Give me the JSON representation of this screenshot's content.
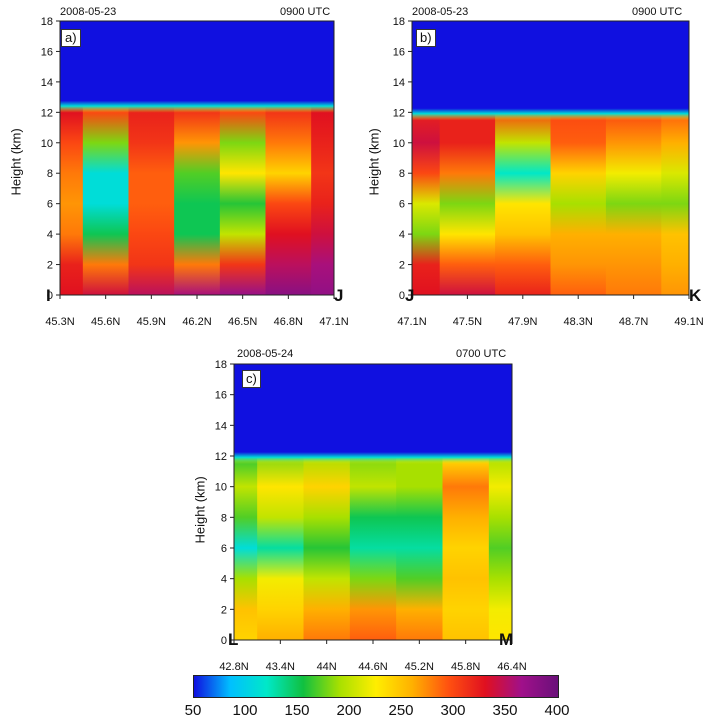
{
  "panels": [
    {
      "id": "a",
      "tag": "a)",
      "date": "2008-05-23",
      "time": "0900 UTC",
      "ylabel": "Height (km)",
      "start_label": "I",
      "end_label": "J",
      "xticks": [
        "45.3N",
        "45.6N",
        "45.9N",
        "46.2N",
        "46.5N",
        "46.8N",
        "47.1N"
      ],
      "yticks": [
        "0",
        "2",
        "4",
        "6",
        "8",
        "10",
        "12",
        "14",
        "16",
        "18"
      ]
    },
    {
      "id": "b",
      "tag": "b)",
      "date": "2008-05-23",
      "time": "0900 UTC",
      "ylabel": "Height (km)",
      "start_label": "J",
      "end_label": "K",
      "xticks": [
        "47.1N",
        "47.5N",
        "47.9N",
        "48.3N",
        "48.7N",
        "49.1N"
      ],
      "yticks": [
        "0",
        "2",
        "4",
        "6",
        "8",
        "10",
        "12",
        "14",
        "16",
        "18"
      ]
    },
    {
      "id": "c",
      "tag": "c)",
      "date": "2008-05-24",
      "time": "0700 UTC",
      "ylabel": "Height (km)",
      "start_label": "L",
      "end_label": "M",
      "xticks": [
        "42.8N",
        "43.4N",
        "44N",
        "44.6N",
        "45.2N",
        "45.8N",
        "46.4N"
      ],
      "yticks": [
        "0",
        "2",
        "4",
        "6",
        "8",
        "10",
        "12",
        "14",
        "16",
        "18"
      ]
    }
  ],
  "colorbar": {
    "ticks": [
      "50",
      "100",
      "150",
      "200",
      "250",
      "300",
      "350",
      "400"
    ],
    "colors": [
      "#1010e0",
      "#00c0ff",
      "#00e8c8",
      "#10c040",
      "#a8e000",
      "#ffee00",
      "#ffb000",
      "#ff5010",
      "#e01020",
      "#a0108a",
      "#6a107a"
    ]
  },
  "chart_data": [
    {
      "type": "heatmap",
      "title": "a)",
      "subtitle": "2008-05-23 0900 UTC",
      "xlabel": "",
      "ylabel": "Height (km)",
      "x_range": [
        "45.3N",
        "47.1N"
      ],
      "ylim": [
        0,
        18
      ],
      "cross_section": [
        "I",
        "J"
      ],
      "colorbar_range": [
        50,
        400
      ],
      "top_of_field_km": 12.5,
      "value_above_top": 50,
      "profiles": [
        {
          "lat": "45.3N",
          "levels_km": [
            0,
            2,
            4,
            6,
            8,
            10,
            12
          ],
          "values": [
            330,
            320,
            280,
            270,
            280,
            300,
            330
          ]
        },
        {
          "lat": "45.6N",
          "levels_km": [
            0,
            2,
            4,
            6,
            8,
            10,
            12
          ],
          "values": [
            340,
            280,
            150,
            110,
            110,
            180,
            300
          ]
        },
        {
          "lat": "45.9N",
          "levels_km": [
            0,
            2,
            4,
            6,
            8,
            10,
            12
          ],
          "values": [
            350,
            310,
            300,
            290,
            290,
            310,
            320
          ]
        },
        {
          "lat": "46.2N",
          "levels_km": [
            0,
            2,
            4,
            6,
            8,
            10,
            12
          ],
          "values": [
            360,
            280,
            150,
            150,
            170,
            270,
            310
          ]
        },
        {
          "lat": "46.5N",
          "levels_km": [
            0,
            2,
            4,
            6,
            8,
            10,
            12
          ],
          "values": [
            370,
            310,
            200,
            160,
            230,
            180,
            300
          ]
        },
        {
          "lat": "46.8N",
          "levels_km": [
            0,
            2,
            4,
            6,
            8,
            10,
            12
          ],
          "values": [
            380,
            350,
            330,
            300,
            240,
            280,
            310
          ]
        },
        {
          "lat": "47.1N",
          "levels_km": [
            0,
            2,
            4,
            6,
            8,
            10,
            12
          ],
          "values": [
            375,
            360,
            340,
            320,
            310,
            320,
            330
          ]
        }
      ]
    },
    {
      "type": "heatmap",
      "title": "b)",
      "subtitle": "2008-05-23 0900 UTC",
      "xlabel": "",
      "ylabel": "Height (km)",
      "x_range": [
        "47.1N",
        "49.1N"
      ],
      "ylim": [
        0,
        18
      ],
      "cross_section": [
        "J",
        "K"
      ],
      "colorbar_range": [
        50,
        400
      ],
      "top_of_field_km": 12,
      "value_above_top": 50,
      "profiles": [
        {
          "lat": "47.1N",
          "levels_km": [
            0,
            2,
            4,
            6,
            8,
            10,
            12
          ],
          "values": [
            330,
            320,
            180,
            210,
            300,
            340,
            320
          ]
        },
        {
          "lat": "47.5N",
          "levels_km": [
            0,
            2,
            4,
            6,
            8,
            10,
            12
          ],
          "values": [
            340,
            290,
            230,
            180,
            280,
            320,
            320
          ]
        },
        {
          "lat": "47.9N",
          "levels_km": [
            0,
            2,
            4,
            6,
            8,
            10,
            12
          ],
          "values": [
            320,
            290,
            250,
            230,
            120,
            200,
            300
          ]
        },
        {
          "lat": "48.3N",
          "levels_km": [
            0,
            2,
            4,
            6,
            8,
            10,
            12
          ],
          "values": [
            290,
            270,
            260,
            190,
            240,
            290,
            300
          ]
        },
        {
          "lat": "48.7N",
          "levels_km": [
            0,
            2,
            4,
            6,
            8,
            10,
            12
          ],
          "values": [
            280,
            270,
            260,
            180,
            220,
            270,
            300
          ]
        },
        {
          "lat": "49.1N",
          "levels_km": [
            0,
            2,
            4,
            6,
            8,
            10,
            12
          ],
          "values": [
            270,
            260,
            250,
            180,
            210,
            260,
            290
          ]
        }
      ]
    },
    {
      "type": "heatmap",
      "title": "c)",
      "subtitle": "2008-05-24 0700 UTC",
      "xlabel": "",
      "ylabel": "Height (km)",
      "x_range": [
        "42.8N",
        "46.4N"
      ],
      "ylim": [
        0,
        18
      ],
      "cross_section": [
        "L",
        "M"
      ],
      "colorbar_range": [
        50,
        400
      ],
      "top_of_field_km": 12,
      "value_above_top": 50,
      "profiles": [
        {
          "lat": "42.8N",
          "levels_km": [
            0,
            2,
            4,
            6,
            8,
            10,
            12
          ],
          "values": [
            240,
            250,
            190,
            110,
            170,
            200,
            160
          ]
        },
        {
          "lat": "43.4N",
          "levels_km": [
            0,
            2,
            4,
            6,
            8,
            10,
            12
          ],
          "values": [
            260,
            240,
            220,
            130,
            200,
            230,
            180
          ]
        },
        {
          "lat": "44N",
          "levels_km": [
            0,
            2,
            4,
            6,
            8,
            10,
            12
          ],
          "values": [
            280,
            260,
            200,
            160,
            190,
            240,
            190
          ]
        },
        {
          "lat": "44.6N",
          "levels_km": [
            0,
            2,
            4,
            6,
            8,
            10,
            12
          ],
          "values": [
            290,
            270,
            180,
            130,
            150,
            200,
            180
          ]
        },
        {
          "lat": "45.2N",
          "levels_km": [
            0,
            2,
            4,
            6,
            8,
            10,
            12
          ],
          "values": [
            280,
            260,
            170,
            130,
            150,
            190,
            190
          ]
        },
        {
          "lat": "45.8N",
          "levels_km": [
            0,
            2,
            4,
            6,
            8,
            10,
            12
          ],
          "values": [
            250,
            240,
            250,
            240,
            260,
            280,
            230
          ]
        },
        {
          "lat": "46.4N",
          "levels_km": [
            0,
            2,
            4,
            6,
            8,
            10,
            12
          ],
          "values": [
            230,
            220,
            190,
            170,
            190,
            220,
            190
          ]
        }
      ]
    }
  ]
}
